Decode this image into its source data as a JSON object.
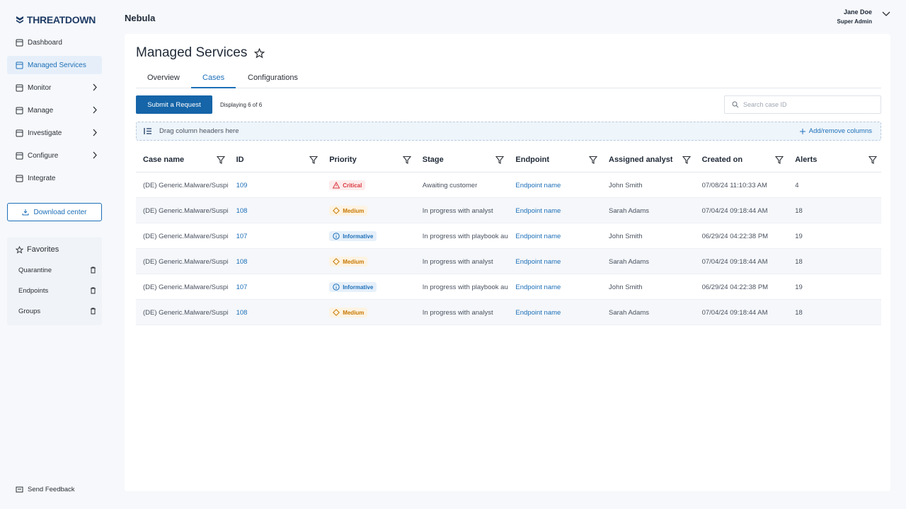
{
  "brand": "THREATDOWN",
  "org": "Nebula",
  "user": {
    "name": "Jane Doe",
    "role": "Super Admin"
  },
  "nav": [
    {
      "label": "Dashboard",
      "expandable": false
    },
    {
      "label": "Managed Services",
      "expandable": false
    },
    {
      "label": "Monitor",
      "expandable": true
    },
    {
      "label": "Manage",
      "expandable": true
    },
    {
      "label": "Investigate",
      "expandable": true
    },
    {
      "label": "Configure",
      "expandable": true
    },
    {
      "label": "Integrate",
      "expandable": false
    }
  ],
  "active_nav": 1,
  "download": "Download center",
  "favorites": {
    "title": "Favorites",
    "items": [
      "Quarantine",
      "Endpoints",
      "Groups"
    ]
  },
  "feedback": "Send Feedback",
  "page": {
    "title": "Managed Services",
    "tabs": [
      "Overview",
      "Cases",
      "Configurations"
    ],
    "active_tab": 1
  },
  "toolbar": {
    "submit": "Submit a Request",
    "count": "Displaying 6 of 6",
    "search_placeholder": "Search case ID",
    "group_hint": "Drag column headers here",
    "add_remove": "Add/remove columns"
  },
  "table": {
    "columns": [
      "Case name",
      "ID",
      "Priority",
      "Stage",
      "Endpoint",
      "Assigned analyst",
      "Created on",
      "Alerts"
    ],
    "rows": [
      [
        "(DE) Generic.Malware/Suspi",
        109,
        {
          "label": "Critical",
          "color": "#d9363e",
          "bg": "#fdecec",
          "icon": "triangle"
        },
        "Awaiting customer",
        "Endpoint name",
        "John Smith",
        "07/08/24 11:10:33 AM",
        4
      ],
      [
        "(DE) Generic.Malware/Suspi",
        108,
        {
          "label": "Medium",
          "color": "#c77700",
          "bg": "#fdf3e3",
          "icon": "diamond"
        },
        "In progress with analyst",
        "Endpoint name",
        "Sarah Adams",
        "07/04/24 09:18:44 AM",
        18
      ],
      [
        "(DE) Generic.Malware/Suspi",
        107,
        {
          "label": "Informative",
          "color": "#1d6fb8",
          "bg": "#e6f0fa",
          "icon": "circle"
        },
        "In progress with playbook au",
        "Endpoint name",
        "John Smith",
        "06/29/24 04:22:38 PM",
        19
      ],
      [
        "(DE) Generic.Malware/Suspi",
        108,
        {
          "label": "Medium",
          "color": "#c77700",
          "bg": "#fdf3e3",
          "icon": "diamond"
        },
        "In progress with analyst",
        "Endpoint name",
        "Sarah Adams",
        "07/04/24 09:18:44 AM",
        18
      ],
      [
        "(DE) Generic.Malware/Suspi",
        107,
        {
          "label": "Informative",
          "color": "#1d6fb8",
          "bg": "#e6f0fa",
          "icon": "circle"
        },
        "In progress with playbook au",
        "Endpoint name",
        "John Smith",
        "06/29/24 04:22:38 PM",
        19
      ],
      [
        "(DE) Generic.Malware/Suspi",
        108,
        {
          "label": "Medium",
          "color": "#c77700",
          "bg": "#fdf3e3",
          "icon": "diamond"
        },
        "In progress with analyst",
        "Endpoint name",
        "Sarah Adams",
        "07/04/24 09:18:44 AM",
        18
      ]
    ],
    "link_columns": [
      1,
      4
    ]
  }
}
